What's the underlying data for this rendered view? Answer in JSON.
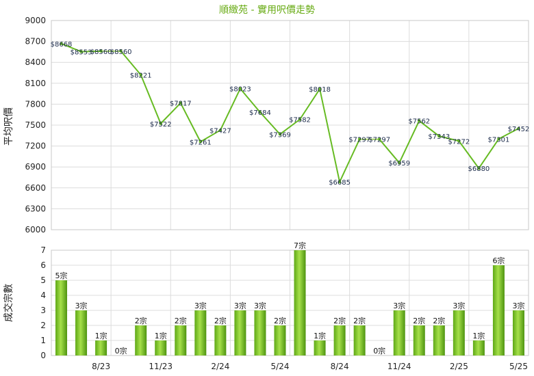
{
  "chart_data": [
    {
      "type": "line",
      "title": "順緻苑 - 實用呎價走勢",
      "ylabel": "平均呎價",
      "ylim": [
        6000,
        9000
      ],
      "yticks": [
        6000,
        6300,
        6600,
        6900,
        7200,
        7500,
        7800,
        8100,
        8400,
        8700,
        9000
      ],
      "series": [
        {
          "points": [
            {
              "x": "2023-06",
              "y": 8668,
              "label": "$8668"
            },
            {
              "x": "2023-07",
              "y": 8553,
              "label": "$8553"
            },
            {
              "x": "2023-08",
              "y": 8560,
              "label": "$8560"
            },
            {
              "x": "2023-09",
              "y": 8560,
              "label": "$8560"
            },
            {
              "x": "2023-10",
              "y": 8221,
              "label": "$8221"
            },
            {
              "x": "2023-11",
              "y": 7522,
              "label": "$7522"
            },
            {
              "x": "2023-12",
              "y": 7817,
              "label": "$7817"
            },
            {
              "x": "2024-01",
              "y": 7261,
              "label": "$7261"
            },
            {
              "x": "2024-02",
              "y": 7427,
              "label": "$7427"
            },
            {
              "x": "2024-03",
              "y": 8023,
              "label": "$8023"
            },
            {
              "x": "2024-04",
              "y": 7684,
              "label": "$7684"
            },
            {
              "x": "2024-05",
              "y": 7369,
              "label": "$7369"
            },
            {
              "x": "2024-06",
              "y": 7582,
              "label": "$7582"
            },
            {
              "x": "2024-07",
              "y": 8018,
              "label": "$8018"
            },
            {
              "x": "2024-08",
              "y": 6685,
              "label": "$6685"
            },
            {
              "x": "2024-09",
              "y": 7297,
              "label": "$7297"
            },
            {
              "x": "2024-10",
              "y": 7297,
              "label": "$7297"
            },
            {
              "x": "2024-11",
              "y": 6959,
              "label": "$6959"
            },
            {
              "x": "2024-12",
              "y": 7562,
              "label": "$7562"
            },
            {
              "x": "2025-01",
              "y": 7343,
              "label": "$7343"
            },
            {
              "x": "2025-02",
              "y": 7272,
              "label": "$7272"
            },
            {
              "x": "2025-03",
              "y": 6880,
              "label": "$6880"
            },
            {
              "x": "2025-04",
              "y": 7301,
              "label": "$7301"
            },
            {
              "x": "2025-05",
              "y": 7452,
              "label": "$7452"
            }
          ],
          "carried_forward": [
            "2023-09",
            "2024-10"
          ]
        }
      ],
      "color": "#66bb22",
      "carry_color": "#99cc55",
      "grid": true
    },
    {
      "type": "bar",
      "ylabel": "成交宗數",
      "ylim": [
        0,
        7
      ],
      "yticks": [
        0,
        1,
        2,
        3,
        4,
        5,
        6,
        7
      ],
      "categories": [
        "2023-06",
        "2023-07",
        "2023-08",
        "2023-09",
        "2023-10",
        "2023-11",
        "2023-12",
        "2024-01",
        "2024-02",
        "2024-03",
        "2024-04",
        "2024-05",
        "2024-06",
        "2024-07",
        "2024-08",
        "2024-09",
        "2024-10",
        "2024-11",
        "2024-12",
        "2025-01",
        "2025-02",
        "2025-03",
        "2025-04",
        "2025-05"
      ],
      "values": [
        5,
        3,
        1,
        0,
        2,
        1,
        2,
        3,
        2,
        3,
        3,
        2,
        7,
        1,
        2,
        2,
        0,
        3,
        2,
        2,
        3,
        1,
        6,
        3
      ],
      "labels": [
        "5宗",
        "3宗",
        "1宗",
        "0宗",
        "2宗",
        "1宗",
        "2宗",
        "3宗",
        "2宗",
        "3宗",
        "3宗",
        "2宗",
        "7宗",
        "1宗",
        "2宗",
        "2宗",
        "0宗",
        "3宗",
        "2宗",
        "2宗",
        "3宗",
        "1宗",
        "6宗",
        "3宗"
      ],
      "xtick_labels": [
        {
          "x": "2023-08",
          "label": "8/23"
        },
        {
          "x": "2023-11",
          "label": "11/23"
        },
        {
          "x": "2024-02",
          "label": "2/24"
        },
        {
          "x": "2024-05",
          "label": "5/24"
        },
        {
          "x": "2024-08",
          "label": "8/24"
        },
        {
          "x": "2024-11",
          "label": "11/24"
        },
        {
          "x": "2025-02",
          "label": "2/25"
        },
        {
          "x": "2025-05",
          "label": "5/25"
        }
      ],
      "color": "#77cc22",
      "grid": true
    }
  ]
}
